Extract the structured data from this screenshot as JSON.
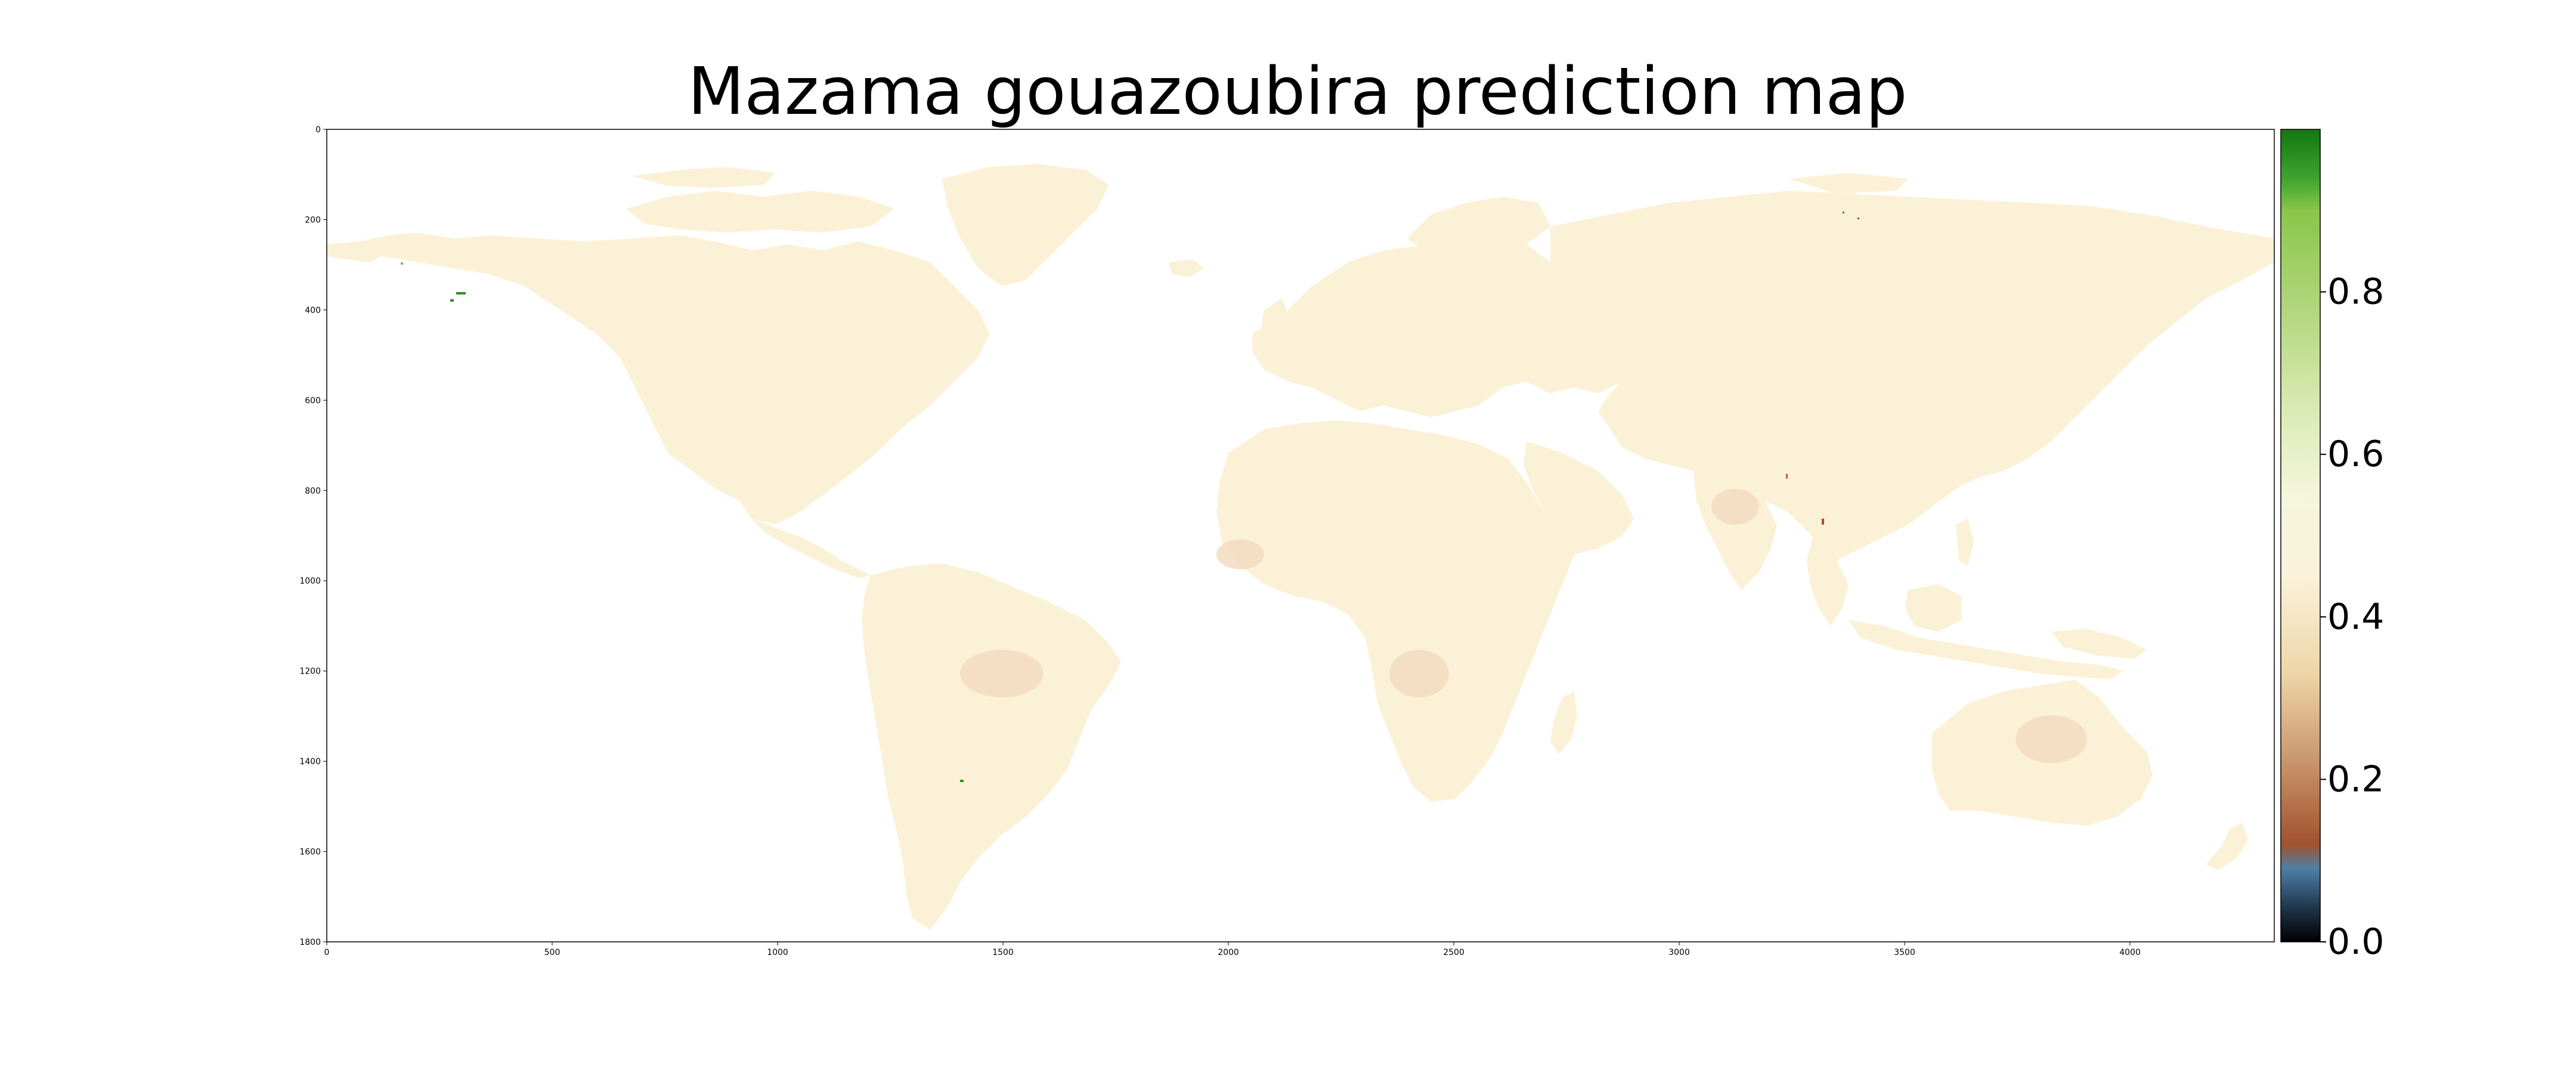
{
  "title": "Mazama gouazoubira prediction map",
  "chart_data": {
    "type": "heatmap",
    "title": "Mazama gouazoubira prediction map",
    "xlabel": "",
    "ylabel": "",
    "xlim": [
      0,
      4320
    ],
    "ylim": [
      1800,
      0
    ],
    "x_ticks": [
      "0",
      "500",
      "1000",
      "1500",
      "2000",
      "2500",
      "3000",
      "3500",
      "4000"
    ],
    "y_ticks": [
      "0",
      "200",
      "400",
      "600",
      "800",
      "1000",
      "1200",
      "1400",
      "1600",
      "1800"
    ],
    "colorbar": {
      "range": [
        0.0,
        1.0
      ],
      "ticks": [
        "0.0",
        "0.2",
        "0.4",
        "0.6",
        "0.8"
      ],
      "colors": [
        "#000000",
        "#2c4a63",
        "#5b8db5",
        "#a0522d",
        "#c8946b",
        "#f0d9b0",
        "#fcf4dd",
        "#e2efc2",
        "#b4d982",
        "#7fc242",
        "#2a9a25",
        "#137a13"
      ]
    },
    "background_value": "land predictions mostly between 0.40 and 0.50",
    "map_colors": {
      "land": "#fbf1d6",
      "land_low": "#f3dcc1",
      "hotspot_high": "#2a8f1c",
      "hotspot_low": "#b4482a"
    }
  }
}
